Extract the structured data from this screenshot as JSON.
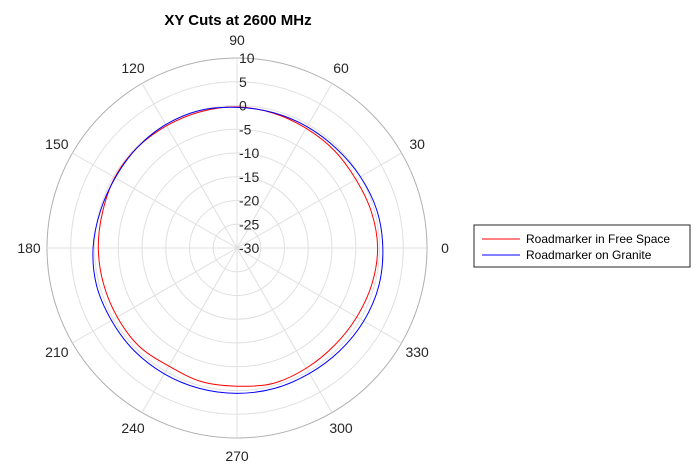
{
  "chart_data": {
    "type": "polar-line",
    "title": "XY Cuts at 2600 MHz",
    "theta_ticks": [
      "0",
      "30",
      "60",
      "90",
      "120",
      "150",
      "180",
      "210",
      "240",
      "270",
      "300",
      "330"
    ],
    "theta_values_deg": [
      0,
      30,
      60,
      90,
      120,
      150,
      180,
      210,
      240,
      270,
      300,
      330
    ],
    "r_ticks": [
      "10",
      "5",
      "0",
      "-5",
      "-10",
      "-15",
      "-20",
      "-25",
      "-30"
    ],
    "r_values": [
      10,
      5,
      0,
      -5,
      -10,
      -15,
      -20,
      -25,
      -30
    ],
    "rlim": [
      -30,
      10
    ],
    "grid": true,
    "legend_position": "right",
    "theta_unit": "degrees",
    "series": [
      {
        "name": "Roadmarker in Free Space",
        "color": "#ff0000",
        "theta": [
          0,
          15,
          30,
          45,
          60,
          75,
          90,
          105,
          120,
          135,
          150,
          165,
          180,
          195,
          210,
          225,
          240,
          255,
          270,
          285,
          300,
          315,
          330,
          345,
          360
        ],
        "r": [
          -0.4,
          -0.7,
          -1.1,
          -1.0,
          -0.9,
          -0.6,
          -0.3,
          -0.3,
          -0.3,
          -0.2,
          -0.3,
          -0.7,
          -0.8,
          -0.9,
          -0.9,
          -0.8,
          -1.3,
          -0.9,
          -0.9,
          -0.5,
          -0.8,
          -1.0,
          -0.9,
          -0.6,
          -0.4
        ]
      },
      {
        "name": "Roadmarker on Granite",
        "color": "#0000ff",
        "theta": [
          0,
          15,
          30,
          45,
          60,
          75,
          90,
          105,
          120,
          135,
          150,
          165,
          180,
          195,
          210,
          225,
          240,
          255,
          270,
          285,
          300,
          315,
          330,
          345,
          360
        ],
        "r": [
          0.7,
          0.5,
          0.0,
          -0.4,
          -0.5,
          -0.5,
          -0.4,
          0.0,
          0.0,
          -0.2,
          -0.4,
          -0.2,
          0.3,
          0.6,
          0.5,
          0.6,
          0.6,
          0.6,
          0.6,
          0.6,
          0.5,
          0.6,
          0.8,
          0.9,
          0.7
        ]
      }
    ]
  }
}
